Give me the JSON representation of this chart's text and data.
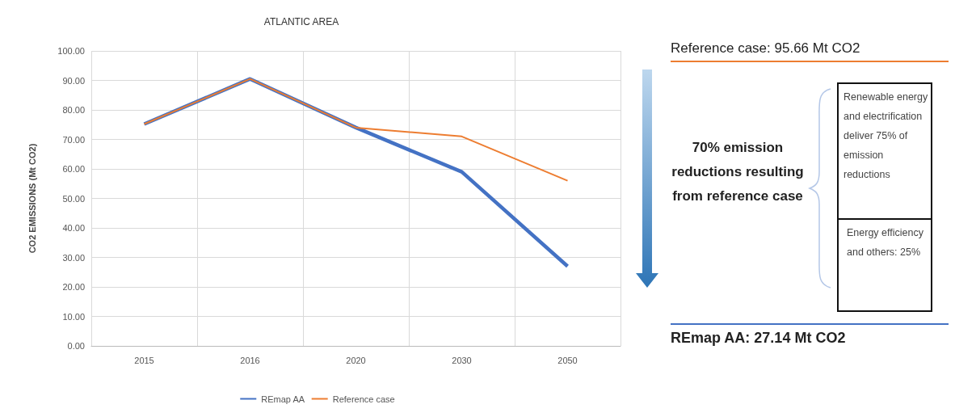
{
  "chart_data": {
    "type": "line",
    "title": "ATLANTIC AREA",
    "ylabel": "CO2 EMISSIONS (Mt CO2)",
    "categories": [
      "2015",
      "2016",
      "2020",
      "2030",
      "2050"
    ],
    "series": [
      {
        "name": "REmap AA",
        "color": "#4472c4",
        "values": [
          75.2,
          90.5,
          74.0,
          59.0,
          27.0
        ]
      },
      {
        "name": "Reference case",
        "color": "#ed7d31",
        "values": [
          75.2,
          90.5,
          74.0,
          71.0,
          56.0
        ]
      }
    ],
    "ylim": [
      0,
      100
    ],
    "yticks": [
      {
        "value": 0,
        "label": "0.00"
      },
      {
        "value": 10,
        "label": "10.00"
      },
      {
        "value": 20,
        "label": "20.00"
      },
      {
        "value": 30,
        "label": "30.00"
      },
      {
        "value": 40,
        "label": "40.00"
      },
      {
        "value": 50,
        "label": "50.00"
      },
      {
        "value": 60,
        "label": "60.00"
      },
      {
        "value": 70,
        "label": "70.00"
      },
      {
        "value": 80,
        "label": "80.00"
      },
      {
        "value": 90,
        "label": "90.00"
      },
      {
        "value": 100,
        "label": "100.00"
      }
    ],
    "grid": true,
    "legend": "bottom",
    "marker": "none",
    "line_style": "solid",
    "annotations": [
      "Reference case: 95.66 Mt CO2",
      "70% emission reductions resulting from reference case",
      "Renewable energy and electrification deliver 75% of emission reductions",
      "Energy efficiency and others: 25%",
      "REmap AA: 27.14 Mt CO2"
    ]
  }
}
